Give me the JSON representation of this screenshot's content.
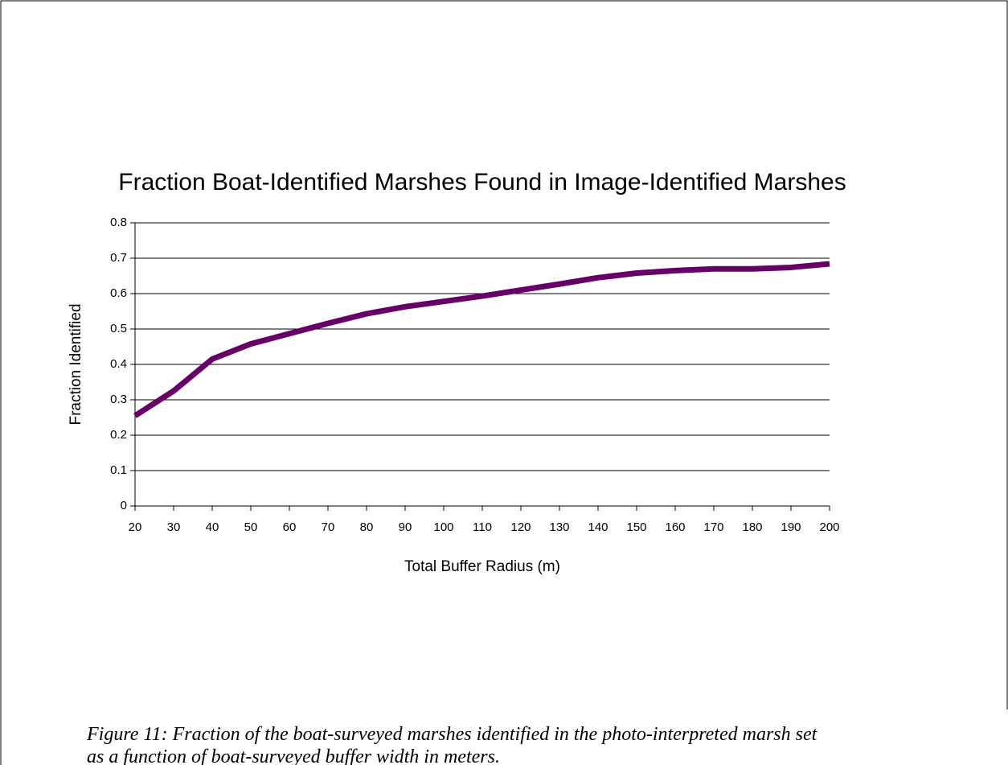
{
  "chart_data": {
    "type": "line",
    "title": "Fraction Boat-Identified Marshes Found in Image-Identified Marshes",
    "xlabel": "Total Buffer Radius (m)",
    "ylabel": "Fraction Identified",
    "x": [
      20,
      30,
      40,
      50,
      60,
      70,
      80,
      90,
      100,
      110,
      120,
      130,
      140,
      150,
      160,
      170,
      180,
      190,
      200
    ],
    "series": [
      {
        "name": "Fraction Identified",
        "color": "#660066",
        "values": [
          0.255,
          0.325,
          0.415,
          0.458,
          0.487,
          0.516,
          0.543,
          0.563,
          0.578,
          0.593,
          0.61,
          0.627,
          0.645,
          0.658,
          0.665,
          0.67,
          0.67,
          0.674,
          0.684
        ]
      }
    ],
    "xlim": [
      20,
      200
    ],
    "xticks": [
      20,
      30,
      40,
      50,
      60,
      70,
      80,
      90,
      100,
      110,
      120,
      130,
      140,
      150,
      160,
      170,
      180,
      190,
      200
    ],
    "ylim": [
      0,
      0.8
    ],
    "yticks": [
      0,
      0.1,
      0.2,
      0.3,
      0.4,
      0.5,
      0.6,
      0.7,
      0.8
    ],
    "grid": true
  },
  "caption": [
    "Figure 11: Fraction of the boat-surveyed marshes identified in the photo-interpreted marsh set",
    "as a function of boat-surveyed buffer width in meters."
  ]
}
